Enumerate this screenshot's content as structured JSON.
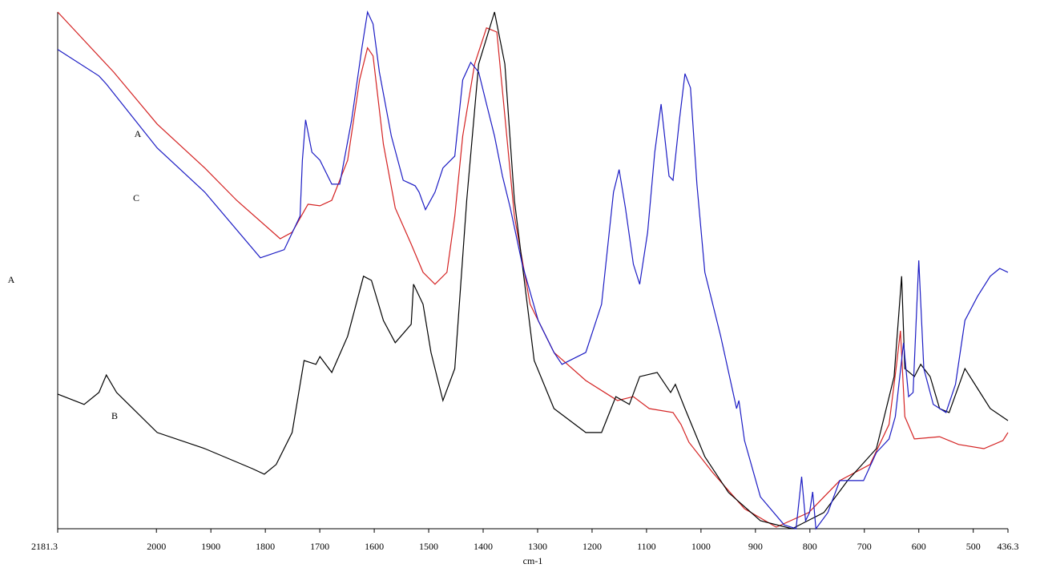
{
  "chart_data": {
    "type": "line",
    "xlabel": "cm-1",
    "ylabel": "A",
    "xlim": [
      2181.3,
      436.3
    ],
    "xticks": [
      2181.3,
      2000,
      1900,
      1800,
      1700,
      1600,
      1500,
      1400,
      1300,
      1200,
      1100,
      1000,
      900,
      800,
      700,
      600,
      500,
      436.3
    ],
    "ylim": [
      0,
      16
    ],
    "series": [
      {
        "name": "A",
        "color": "#d42222",
        "x": [
          2181.3,
          2078.5,
          1998.5,
          1911.1,
          1852.8,
          1772.7,
          1750.8,
          1721.7,
          1699.8,
          1677.9,
          1648.8,
          1626.9,
          1612.4,
          1602.2,
          1583.2,
          1561.4,
          1532.2,
          1510.4,
          1488.5,
          1466.6,
          1452.1,
          1437.5,
          1415.6,
          1393.8,
          1374.8,
          1360.2,
          1342.7,
          1313.6,
          1269.9,
          1211.6,
          1153.3,
          1124.1,
          1095.0,
          1051.3,
          1036.7,
          1022.2,
          978.5,
          920.1,
          861.8,
          802.1,
          745.2,
          689.5,
          654.7,
          640.8,
          633.8,
          625.6,
          608.2,
          561.8,
          526.9,
          480.4,
          445.6,
          436.3
        ],
        "values": [
          16.0,
          14.14,
          12.53,
          11.17,
          10.17,
          8.98,
          9.18,
          10.05,
          10.0,
          10.17,
          11.41,
          13.9,
          14.89,
          14.64,
          11.91,
          9.93,
          8.81,
          7.94,
          7.57,
          7.94,
          9.68,
          12.16,
          14.39,
          15.51,
          15.38,
          12.78,
          9.68,
          6.95,
          5.46,
          4.59,
          3.97,
          4.09,
          3.72,
          3.6,
          3.23,
          2.68,
          1.74,
          0.62,
          0.05,
          0.5,
          1.49,
          1.99,
          3.23,
          5.09,
          6.13,
          3.47,
          2.78,
          2.85,
          2.61,
          2.48,
          2.73,
          2.98
        ]
      },
      {
        "name": "B",
        "color": "#000000",
        "x": [
          2181.3,
          2132.7,
          2105.5,
          2092.0,
          2073.1,
          1998.5,
          1911.1,
          1823.7,
          1801.8,
          1780.0,
          1750.8,
          1728.9,
          1707.1,
          1699.8,
          1677.9,
          1648.8,
          1619.7,
          1605.1,
          1583.2,
          1561.4,
          1532.2,
          1527.9,
          1510.4,
          1495.8,
          1473.9,
          1452.1,
          1430.2,
          1408.3,
          1379.2,
          1360.2,
          1342.7,
          1306.3,
          1269.9,
          1211.6,
          1182.5,
          1156.3,
          1131.5,
          1112.5,
          1080.5,
          1055.7,
          1047.0,
          1029.4,
          992.9,
          949.3,
          891.0,
          832.7,
          774.4,
          730.7,
          677.9,
          645.4,
          631.5,
          625.6,
          608.2,
          596.6,
          579.2,
          561.8,
          544.3,
          515.3,
          492.1,
          468.8,
          436.3
        ],
        "values": [
          4.17,
          3.85,
          4.22,
          4.76,
          4.22,
          2.98,
          2.48,
          1.86,
          1.69,
          1.99,
          2.98,
          5.21,
          5.09,
          5.33,
          4.84,
          5.96,
          7.82,
          7.69,
          6.45,
          5.76,
          6.33,
          7.57,
          6.95,
          5.46,
          3.97,
          4.96,
          10.17,
          14.39,
          16.0,
          14.39,
          10.17,
          5.21,
          3.72,
          2.98,
          2.98,
          4.09,
          3.85,
          4.71,
          4.84,
          4.22,
          4.47,
          3.72,
          2.23,
          1.12,
          0.25,
          0,
          0.5,
          1.49,
          2.48,
          4.71,
          7.82,
          4.96,
          4.71,
          5.09,
          4.71,
          3.72,
          3.6,
          4.96,
          4.34,
          3.72,
          3.35
        ]
      },
      {
        "name": "C",
        "color": "#1c1cc4",
        "x": [
          2181.3,
          2105.5,
          2092.0,
          1998.5,
          1911.1,
          1809.1,
          1765.4,
          1736.2,
          1731.9,
          1726.0,
          1714.4,
          1699.8,
          1677.9,
          1663.4,
          1641.5,
          1622.6,
          1612.4,
          1602.2,
          1590.5,
          1568.6,
          1546.8,
          1524.9,
          1517.6,
          1506.0,
          1488.5,
          1473.9,
          1452.1,
          1437.5,
          1422.9,
          1408.3,
          1393.8,
          1379.2,
          1364.6,
          1350.1,
          1328.2,
          1299.0,
          1269.9,
          1255.3,
          1211.6,
          1182.5,
          1160.6,
          1150.4,
          1138.7,
          1124.1,
          1112.5,
          1097.9,
          1084.8,
          1073.2,
          1058.6,
          1051.3,
          1039.6,
          1029.4,
          1019.2,
          1007.5,
          992.9,
          963.8,
          934.7,
          930.3,
          920.1,
          891.0,
          847.3,
          825.4,
          815.2,
          807.9,
          800.6,
          794.8,
          789.0,
          767.1,
          745.2,
          701.5,
          677.9,
          654.7,
          643.1,
          628.0,
          618.7,
          610.5,
          600.1,
          590.8,
          573.4,
          550.1,
          532.7,
          515.3,
          492.1,
          468.8,
          451.4,
          436.3
        ],
        "values": [
          14.84,
          14.02,
          13.77,
          11.79,
          10.42,
          8.39,
          8.64,
          9.68,
          11.41,
          12.66,
          11.66,
          11.41,
          10.67,
          10.67,
          12.66,
          14.89,
          16.0,
          15.63,
          14.14,
          12.16,
          10.79,
          10.62,
          10.42,
          9.88,
          10.42,
          11.17,
          11.54,
          13.9,
          14.44,
          14.14,
          13.15,
          12.16,
          10.92,
          9.93,
          8.19,
          6.45,
          5.46,
          5.09,
          5.46,
          6.95,
          10.42,
          11.12,
          9.93,
          8.19,
          7.57,
          9.18,
          11.66,
          13.15,
          10.92,
          10.79,
          12.66,
          14.09,
          13.65,
          10.67,
          7.94,
          5.96,
          3.72,
          3.97,
          2.73,
          0.99,
          0.12,
          0,
          1.61,
          0.25,
          0.5,
          1.14,
          0,
          0.5,
          1.49,
          1.49,
          2.36,
          2.78,
          3.47,
          5.76,
          4.09,
          4.22,
          8.31,
          4.96,
          3.85,
          3.6,
          4.47,
          6.45,
          7.2,
          7.82,
          8.06,
          7.94
        ]
      }
    ]
  }
}
